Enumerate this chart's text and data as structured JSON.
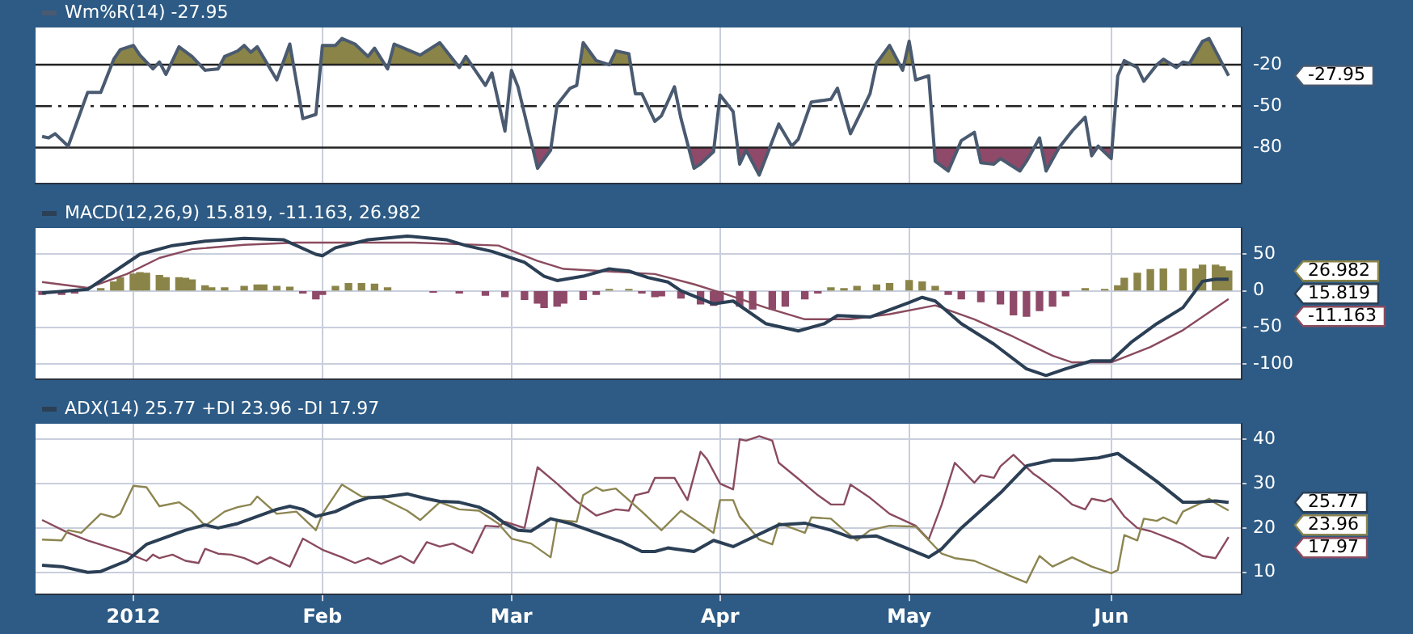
{
  "chart_data": [
    {
      "type": "line",
      "title": "Wm%R(14) -27.95",
      "grid": "x",
      "tick_labels": "y",
      "marker": "none",
      "xlim": [
        "2011-12-19",
        "2012-06-21"
      ],
      "ylim": [
        -106,
        7
      ],
      "xticks": [
        {
          "value": "2012-01-03",
          "label": null
        },
        {
          "value": "2012-02-01",
          "label": null
        },
        {
          "value": "2012-03-01",
          "label": null
        },
        {
          "value": "2012-04-02",
          "label": null
        },
        {
          "value": "2012-05-01",
          "label": null
        },
        {
          "value": "2012-06-01",
          "label": null
        }
      ],
      "yticks": [
        -20,
        -50,
        -80
      ],
      "ref_lines": [
        {
          "axis": "y",
          "value": -20,
          "color": "#222222",
          "line_style": "solid"
        },
        {
          "axis": "y",
          "value": -50,
          "color": "#222222",
          "line_style": "dashed"
        },
        {
          "axis": "y",
          "value": -80,
          "color": "#222222",
          "line_style": "solid"
        }
      ],
      "annotations": [
        "-27.95"
      ],
      "series": [
        {
          "color": "#4a5a70",
          "x": [
            "2011-12-20",
            "2011-12-21",
            "2011-12-22",
            "2011-12-24",
            "2011-12-27",
            "2011-12-29",
            "2011-12-31",
            "2012-01-01",
            "2012-01-03",
            "2012-01-04",
            "2012-01-06",
            "2012-01-07",
            "2012-01-08",
            "2012-01-10",
            "2012-01-12",
            "2012-01-14",
            "2012-01-16",
            "2012-01-17",
            "2012-01-19",
            "2012-01-20",
            "2012-01-21",
            "2012-01-22",
            "2012-01-25",
            "2012-01-27",
            "2012-01-29",
            "2012-01-31",
            "2012-02-01",
            "2012-02-03",
            "2012-02-04",
            "2012-02-06",
            "2012-02-08",
            "2012-02-09",
            "2012-02-11",
            "2012-02-12",
            "2012-02-16",
            "2012-02-19",
            "2012-02-22",
            "2012-02-23",
            "2012-02-26",
            "2012-02-27",
            "2012-02-29",
            "2012-03-01",
            "2012-03-02",
            "2012-03-05",
            "2012-03-07",
            "2012-03-08",
            "2012-03-10",
            "2012-03-11",
            "2012-03-12",
            "2012-03-14",
            "2012-03-16",
            "2012-03-17",
            "2012-03-19",
            "2012-03-20",
            "2012-03-21",
            "2012-03-23",
            "2012-03-24",
            "2012-03-26",
            "2012-03-27",
            "2012-03-29",
            "2012-03-30",
            "2012-04-01",
            "2012-04-02",
            "2012-04-04",
            "2012-04-05",
            "2012-04-06",
            "2012-04-08",
            "2012-04-11",
            "2012-04-13",
            "2012-04-14",
            "2012-04-16",
            "2012-04-19",
            "2012-04-20",
            "2012-04-22",
            "2012-04-25",
            "2012-04-26",
            "2012-04-28",
            "2012-04-30",
            "2012-05-01",
            "2012-05-02",
            "2012-05-04",
            "2012-05-05",
            "2012-05-07",
            "2012-05-09",
            "2012-05-11",
            "2012-05-12",
            "2012-05-14",
            "2012-05-15",
            "2012-05-18",
            "2012-05-19",
            "2012-05-21",
            "2012-05-22",
            "2012-05-24",
            "2012-05-26",
            "2012-05-28",
            "2012-05-29",
            "2012-05-30",
            "2012-06-01",
            "2012-06-02",
            "2012-06-03",
            "2012-06-05",
            "2012-06-06",
            "2012-06-08",
            "2012-06-09",
            "2012-06-11",
            "2012-06-12",
            "2012-06-13",
            "2012-06-15",
            "2012-06-16",
            "2012-06-19"
          ],
          "values": [
            -72,
            -73,
            -70,
            -79,
            -40,
            -40,
            -16,
            -9,
            -6,
            -13,
            -23,
            -18,
            -27,
            -7,
            -14,
            -24,
            -23,
            -14,
            -10,
            -6,
            -11,
            -7,
            -31,
            -5,
            -59,
            -56,
            -6,
            -6,
            -1,
            -5,
            -14,
            -8,
            -23,
            -5,
            -13,
            -4,
            -22,
            -14,
            -35,
            -26,
            -68,
            -24,
            -36,
            -95,
            -82,
            -49,
            -37,
            -35,
            -4,
            -17,
            -20,
            -10,
            -12,
            -41,
            -41,
            -61,
            -57,
            -36,
            -59,
            -95,
            -92,
            -83,
            -42,
            -54,
            -92,
            -82,
            -100,
            -63,
            -79,
            -74,
            -47,
            -45,
            -37,
            -70,
            -41,
            -19,
            -6,
            -24,
            -3,
            -31,
            -28,
            -90,
            -97,
            -75,
            -69,
            -91,
            -92,
            -88,
            -97,
            -90,
            -73,
            -97,
            -80,
            -68,
            -58,
            -86,
            -79,
            -88,
            -28,
            -17,
            -22,
            -32,
            -20,
            -16,
            -22,
            -18,
            -19,
            -3,
            -1,
            -27.95
          ]
        }
      ]
    },
    {
      "type": "line",
      "title": "MACD(12,26,9) 15.819, -11.163, 26.982",
      "grid": true,
      "tick_labels": "y",
      "marker": "none",
      "xlim": [
        "2011-12-19",
        "2012-06-21"
      ],
      "ylim": [
        -121,
        86
      ],
      "xticks": [
        {
          "value": "2012-01-03",
          "label": null
        },
        {
          "value": "2012-02-01",
          "label": null
        },
        {
          "value": "2012-03-01",
          "label": null
        },
        {
          "value": "2012-04-02",
          "label": null
        },
        {
          "value": "2012-05-01",
          "label": null
        },
        {
          "value": "2012-06-01",
          "label": null
        }
      ],
      "yticks": [
        50,
        0,
        -50,
        -100
      ],
      "annotations": [
        "15.819",
        "-11.163",
        "26.982"
      ],
      "series": [
        {
          "color": "#2b3f55",
          "x": [
            "2011-12-20",
            "2011-12-27",
            "2012-01-01",
            "2012-01-04",
            "2012-01-09",
            "2012-01-14",
            "2012-01-20",
            "2012-01-26",
            "2012-01-31",
            "2012-02-01",
            "2012-02-03",
            "2012-02-08",
            "2012-02-14",
            "2012-02-20",
            "2012-02-23",
            "2012-02-27",
            "2012-03-03",
            "2012-03-06",
            "2012-03-08",
            "2012-03-12",
            "2012-03-16",
            "2012-03-19",
            "2012-03-22",
            "2012-03-25",
            "2012-03-27",
            "2012-04-01",
            "2012-04-04",
            "2012-04-09",
            "2012-04-14",
            "2012-04-18",
            "2012-04-20",
            "2012-04-25",
            "2012-05-01",
            "2012-05-03",
            "2012-05-05",
            "2012-05-09",
            "2012-05-14",
            "2012-05-19",
            "2012-05-22",
            "2012-05-25",
            "2012-05-29",
            "2012-06-01",
            "2012-06-04",
            "2012-06-08",
            "2012-06-12",
            "2012-06-15",
            "2012-06-17",
            "2012-06-19"
          ],
          "values": [
            -3,
            2,
            32,
            50,
            62,
            68,
            72,
            70,
            50,
            48,
            59,
            70,
            75,
            70,
            62,
            54,
            39,
            20,
            14,
            20,
            30,
            27,
            18,
            12,
            0,
            -18,
            -14,
            -45,
            -55,
            -45,
            -34,
            -36,
            -16,
            -9,
            -14,
            -45,
            -73,
            -107,
            -116,
            -107,
            -96,
            -96,
            -71,
            -45,
            -23,
            13,
            16,
            15.819
          ]
        },
        {
          "color": "#8a4b5e",
          "x": [
            "2011-12-20",
            "2011-12-27",
            "2012-01-02",
            "2012-01-07",
            "2012-01-12",
            "2012-01-20",
            "2012-01-28",
            "2012-02-06",
            "2012-02-15",
            "2012-02-28",
            "2012-03-05",
            "2012-03-09",
            "2012-03-15",
            "2012-03-23",
            "2012-03-29",
            "2012-04-03",
            "2012-04-09",
            "2012-04-15",
            "2012-04-22",
            "2012-04-28",
            "2012-05-05",
            "2012-05-11",
            "2012-05-17",
            "2012-05-23",
            "2012-05-26",
            "2012-06-01",
            "2012-06-07",
            "2012-06-12",
            "2012-06-19"
          ],
          "values": [
            12,
            4,
            23,
            45,
            57,
            63,
            66,
            66,
            66,
            62,
            41,
            30,
            27,
            23,
            9,
            -5,
            -23,
            -39,
            -39,
            -32,
            -20,
            -39,
            -63,
            -89,
            -98,
            -98,
            -77,
            -54,
            -11.163
          ]
        },
        {
          "type": "bar",
          "x": [
            "2011-12-20",
            "2011-12-23",
            "2011-12-25",
            "2011-12-29",
            "2011-12-31",
            "2012-01-01",
            "2012-01-03",
            "2012-01-04",
            "2012-01-05",
            "2012-01-07",
            "2012-01-08",
            "2012-01-10",
            "2012-01-11",
            "2012-01-12",
            "2012-01-14",
            "2012-01-15",
            "2012-01-17",
            "2012-01-20",
            "2012-01-22",
            "2012-01-23",
            "2012-01-25",
            "2012-01-27",
            "2012-01-29",
            "2012-01-31",
            "2012-02-01",
            "2012-02-03",
            "2012-02-05",
            "2012-02-07",
            "2012-02-09",
            "2012-02-11",
            "2012-02-18",
            "2012-02-22",
            "2012-02-26",
            "2012-02-29",
            "2012-03-03",
            "2012-03-05",
            "2012-03-06",
            "2012-03-08",
            "2012-03-09",
            "2012-03-12",
            "2012-03-14",
            "2012-03-16",
            "2012-03-19",
            "2012-03-21",
            "2012-03-23",
            "2012-03-24",
            "2012-03-27",
            "2012-03-30",
            "2012-04-01",
            "2012-04-02",
            "2012-04-05",
            "2012-04-07",
            "2012-04-10",
            "2012-04-12",
            "2012-04-15",
            "2012-04-17",
            "2012-04-19",
            "2012-04-21",
            "2012-04-23",
            "2012-04-26",
            "2012-04-28",
            "2012-05-01",
            "2012-05-03",
            "2012-05-05",
            "2012-05-07",
            "2012-05-09",
            "2012-05-12",
            "2012-05-15",
            "2012-05-17",
            "2012-05-19",
            "2012-05-21",
            "2012-05-23",
            "2012-05-25",
            "2012-05-28",
            "2012-05-31",
            "2012-06-02",
            "2012-06-03",
            "2012-06-05",
            "2012-06-07",
            "2012-06-09",
            "2012-06-12",
            "2012-06-14",
            "2012-06-15",
            "2012-06-17",
            "2012-06-18",
            "2012-06-19"
          ],
          "values": [
            -5,
            -5,
            -3,
            3,
            12,
            18,
            23,
            25,
            24,
            21,
            18,
            18,
            17,
            15,
            7,
            4,
            4,
            6,
            8,
            8,
            6,
            5,
            -3,
            -11,
            -5,
            6,
            10,
            10,
            9,
            4,
            -2,
            -3,
            -6,
            -8,
            -12,
            -17,
            -23,
            -21,
            -17,
            -12,
            -5,
            2,
            2,
            -3,
            -8,
            -7,
            -10,
            -18,
            -20,
            -16,
            -21,
            -25,
            -25,
            -21,
            -11,
            -3,
            4,
            3,
            6,
            8,
            10,
            14,
            12,
            6,
            -5,
            -11,
            -15,
            -18,
            -33,
            -35,
            -27,
            -21,
            -7,
            3,
            2,
            7,
            17,
            24,
            29,
            30,
            30,
            30,
            35,
            35,
            33,
            26.982
          ],
          "colors": [
            "#8e4a68",
            "#8e4a68",
            "#8e4a68",
            "#8a8448",
            "#8a8448",
            "#8a8448",
            "#8a8448",
            "#8a8448",
            "#8a8448",
            "#8a8448",
            "#8a8448",
            "#8a8448",
            "#8a8448",
            "#8a8448",
            "#8a8448",
            "#8a8448",
            "#8a8448",
            "#8a8448",
            "#8a8448",
            "#8a8448",
            "#8a8448",
            "#8a8448",
            "#8e4a68",
            "#8e4a68",
            "#8e4a68",
            "#8a8448",
            "#8a8448",
            "#8a8448",
            "#8a8448",
            "#8a8448",
            "#8e4a68",
            "#8e4a68",
            "#8e4a68",
            "#8e4a68",
            "#8e4a68",
            "#8e4a68",
            "#8e4a68",
            "#8e4a68",
            "#8e4a68",
            "#8e4a68",
            "#8e4a68",
            "#8a8448",
            "#8a8448",
            "#8e4a68",
            "#8e4a68",
            "#8e4a68",
            "#8e4a68",
            "#8e4a68",
            "#8e4a68",
            "#8e4a68",
            "#8e4a68",
            "#8e4a68",
            "#8e4a68",
            "#8e4a68",
            "#8e4a68",
            "#8e4a68",
            "#8a8448",
            "#8a8448",
            "#8a8448",
            "#8a8448",
            "#8a8448",
            "#8a8448",
            "#8a8448",
            "#8a8448",
            "#8e4a68",
            "#8e4a68",
            "#8e4a68",
            "#8e4a68",
            "#8e4a68",
            "#8e4a68",
            "#8e4a68",
            "#8e4a68",
            "#8e4a68",
            "#8a8448",
            "#8a8448",
            "#8a8448",
            "#8a8448",
            "#8a8448",
            "#8a8448",
            "#8a8448",
            "#8a8448",
            "#8a8448",
            "#8a8448",
            "#8a8448",
            "#8a8448",
            "#8a8448"
          ]
        }
      ]
    },
    {
      "type": "line",
      "title": "ADX(14) 25.77 +DI 23.96 -DI 17.97",
      "grid": true,
      "marker": "none",
      "xlim": [
        "2011-12-19",
        "2012-06-21"
      ],
      "ylim": [
        5,
        43.5
      ],
      "xticks": [
        {
          "value": "2012-01-03",
          "label": "2012"
        },
        {
          "value": "2012-02-01",
          "label": "Feb"
        },
        {
          "value": "2012-03-01",
          "label": "Mar"
        },
        {
          "value": "2012-04-02",
          "label": "Apr"
        },
        {
          "value": "2012-05-01",
          "label": "May"
        },
        {
          "value": "2012-06-01",
          "label": "Jun"
        }
      ],
      "yticks": [
        10,
        20,
        30,
        40
      ],
      "annotations": [
        "25.77",
        "23.96",
        "17.97"
      ],
      "series": [
        {
          "color": "#2b3f55",
          "x": [
            "2011-12-20",
            "2011-12-23",
            "2011-12-27",
            "2011-12-29",
            "2012-01-02",
            "2012-01-05",
            "2012-01-08",
            "2012-01-11",
            "2012-01-14",
            "2012-01-16",
            "2012-01-19",
            "2012-01-22",
            "2012-01-25",
            "2012-01-27",
            "2012-01-29",
            "2012-01-31",
            "2012-02-03",
            "2012-02-06",
            "2012-02-08",
            "2012-02-11",
            "2012-02-14",
            "2012-02-17",
            "2012-02-19",
            "2012-02-22",
            "2012-02-25",
            "2012-02-27",
            "2012-02-29",
            "2012-03-02",
            "2012-03-04",
            "2012-03-07",
            "2012-03-10",
            "2012-03-14",
            "2012-03-18",
            "2012-03-21",
            "2012-03-23",
            "2012-03-25",
            "2012-03-26",
            "2012-03-29",
            "2012-04-01",
            "2012-04-04",
            "2012-04-06",
            "2012-04-11",
            "2012-04-15",
            "2012-04-19",
            "2012-04-22",
            "2012-04-26",
            "2012-04-30",
            "2012-05-04",
            "2012-05-06",
            "2012-05-09",
            "2012-05-15",
            "2012-05-19",
            "2012-05-23",
            "2012-05-26",
            "2012-05-30",
            "2012-06-02",
            "2012-06-05",
            "2012-06-08",
            "2012-06-12",
            "2012-06-14",
            "2012-06-17",
            "2012-06-19"
          ],
          "values": [
            11.6,
            11.3,
            10,
            10.2,
            12.6,
            16.3,
            17.9,
            19.5,
            20.7,
            20,
            21,
            22.6,
            24.2,
            24.9,
            24.2,
            22.6,
            23.7,
            25.8,
            26.8,
            27.1,
            27.7,
            26.6,
            26,
            25.8,
            24.7,
            23.2,
            21,
            19.5,
            19.3,
            22.1,
            21,
            18.9,
            16.8,
            14.7,
            14.7,
            15.5,
            15.3,
            14.7,
            17.2,
            15.8,
            17.2,
            20.7,
            21.1,
            19.5,
            17.9,
            18.2,
            15.8,
            13.4,
            15.3,
            20,
            27.9,
            34,
            35.3,
            35.3,
            35.8,
            36.8,
            33.7,
            30.5,
            25.8,
            25.8,
            26.1,
            25.77
          ]
        },
        {
          "color": "#8c8550",
          "x": [
            "2011-12-20",
            "2011-12-23",
            "2011-12-24",
            "2011-12-26",
            "2011-12-29",
            "2011-12-31",
            "2012-01-01",
            "2012-01-03",
            "2012-01-05",
            "2012-01-07",
            "2012-01-10",
            "2012-01-12",
            "2012-01-14",
            "2012-01-17",
            "2012-01-19",
            "2012-01-21",
            "2012-01-22",
            "2012-01-25",
            "2012-01-28",
            "2012-01-31",
            "2012-02-01",
            "2012-02-04",
            "2012-02-07",
            "2012-02-10",
            "2012-02-14",
            "2012-02-16",
            "2012-02-19",
            "2012-02-22",
            "2012-02-25",
            "2012-02-28",
            "2012-03-01",
            "2012-03-04",
            "2012-03-07",
            "2012-03-08",
            "2012-03-11",
            "2012-03-12",
            "2012-03-14",
            "2012-03-15",
            "2012-03-17",
            "2012-03-21",
            "2012-03-24",
            "2012-03-27",
            "2012-04-01",
            "2012-04-02",
            "2012-04-04",
            "2012-04-05",
            "2012-04-08",
            "2012-04-10",
            "2012-04-11",
            "2012-04-15",
            "2012-04-16",
            "2012-04-19",
            "2012-04-21",
            "2012-04-23",
            "2012-04-25",
            "2012-04-28",
            "2012-05-02",
            "2012-05-06",
            "2012-05-08",
            "2012-05-11",
            "2012-05-17",
            "2012-05-19",
            "2012-05-21",
            "2012-05-23",
            "2012-05-26",
            "2012-05-29",
            "2012-06-01",
            "2012-06-02",
            "2012-06-03",
            "2012-06-05",
            "2012-06-06",
            "2012-06-08",
            "2012-06-09",
            "2012-06-11",
            "2012-06-12",
            "2012-06-15",
            "2012-06-16",
            "2012-06-17",
            "2012-06-19"
          ],
          "values": [
            17.4,
            17.2,
            19.5,
            18.9,
            23.2,
            22.4,
            23.2,
            29.5,
            29.2,
            24.9,
            25.8,
            23.7,
            20.5,
            23.7,
            24.7,
            25.3,
            27.1,
            23.2,
            23.7,
            19.5,
            23.2,
            29.8,
            27.1,
            26.8,
            23.9,
            21.8,
            25.8,
            24.2,
            23.9,
            21,
            17.6,
            16.5,
            13.4,
            21.8,
            21.4,
            27.4,
            29.2,
            28.4,
            28.9,
            23.7,
            19.5,
            23.9,
            18.9,
            26.3,
            26.3,
            22.6,
            17.4,
            16.3,
            21.1,
            18.9,
            22.4,
            22.1,
            19.5,
            17.2,
            19.5,
            20.5,
            20.3,
            14.2,
            13.2,
            12.6,
            8.9,
            7.7,
            13.7,
            11.3,
            13.4,
            11.3,
            9.8,
            10.5,
            18.4,
            17.2,
            22.1,
            21.6,
            22.4,
            21,
            23.7,
            25.8,
            26.6,
            25.6,
            23.96
          ]
        },
        {
          "color": "#8a4b5e",
          "x": [
            "2011-12-20",
            "2011-12-24",
            "2011-12-27",
            "2012-01-02",
            "2012-01-05",
            "2012-01-06",
            "2012-01-07",
            "2012-01-09",
            "2012-01-11",
            "2012-01-13",
            "2012-01-14",
            "2012-01-16",
            "2012-01-18",
            "2012-01-20",
            "2012-01-22",
            "2012-01-24",
            "2012-01-27",
            "2012-01-29",
            "2012-02-01",
            "2012-02-04",
            "2012-02-06",
            "2012-02-08",
            "2012-02-10",
            "2012-02-13",
            "2012-02-15",
            "2012-02-17",
            "2012-02-19",
            "2012-02-21",
            "2012-02-24",
            "2012-02-26",
            "2012-02-28",
            "2012-02-29",
            "2012-03-03",
            "2012-03-05",
            "2012-03-08",
            "2012-03-11",
            "2012-03-14",
            "2012-03-17",
            "2012-03-19",
            "2012-03-20",
            "2012-03-22",
            "2012-03-23",
            "2012-03-26",
            "2012-03-28",
            "2012-03-30",
            "2012-03-31",
            "2012-04-02",
            "2012-04-04",
            "2012-04-05",
            "2012-04-06",
            "2012-04-08",
            "2012-04-10",
            "2012-04-11",
            "2012-04-14",
            "2012-04-17",
            "2012-04-19",
            "2012-04-21",
            "2012-04-22",
            "2012-04-25",
            "2012-04-28",
            "2012-05-02",
            "2012-05-04",
            "2012-05-06",
            "2012-05-08",
            "2012-05-11",
            "2012-05-12",
            "2012-05-14",
            "2012-05-15",
            "2012-05-17",
            "2012-05-20",
            "2012-05-21",
            "2012-05-24",
            "2012-05-26",
            "2012-05-28",
            "2012-05-29",
            "2012-05-31",
            "2012-06-01",
            "2012-06-03",
            "2012-06-05",
            "2012-06-07",
            "2012-06-10",
            "2012-06-12",
            "2012-06-15",
            "2012-06-17",
            "2012-06-19"
          ],
          "values": [
            21.8,
            18.9,
            17.2,
            14.4,
            12.6,
            14,
            13.2,
            14,
            12.6,
            12.1,
            15.3,
            14.2,
            14,
            13.2,
            11.9,
            13.4,
            11.3,
            17.6,
            15.1,
            13.4,
            12.1,
            13.2,
            11.9,
            13.7,
            12.1,
            16.8,
            15.8,
            16.5,
            14.4,
            20.5,
            20.3,
            21.4,
            20,
            33.7,
            30,
            26,
            22.8,
            24.2,
            23.9,
            27.4,
            28.1,
            31.3,
            31.3,
            26.3,
            37.2,
            35.5,
            30,
            28.7,
            40,
            39.7,
            40.7,
            39.7,
            34.7,
            31.1,
            27.4,
            25.3,
            25.3,
            29.8,
            26.8,
            23.2,
            20.5,
            17.4,
            25.3,
            34.7,
            30.2,
            31.9,
            31.3,
            33.9,
            36.5,
            32.3,
            31.3,
            27.9,
            25.3,
            24.2,
            26.6,
            26,
            26.6,
            22.6,
            20,
            19.3,
            17.6,
            16.3,
            13.7,
            13.2,
            17.97
          ]
        }
      ]
    }
  ]
}
